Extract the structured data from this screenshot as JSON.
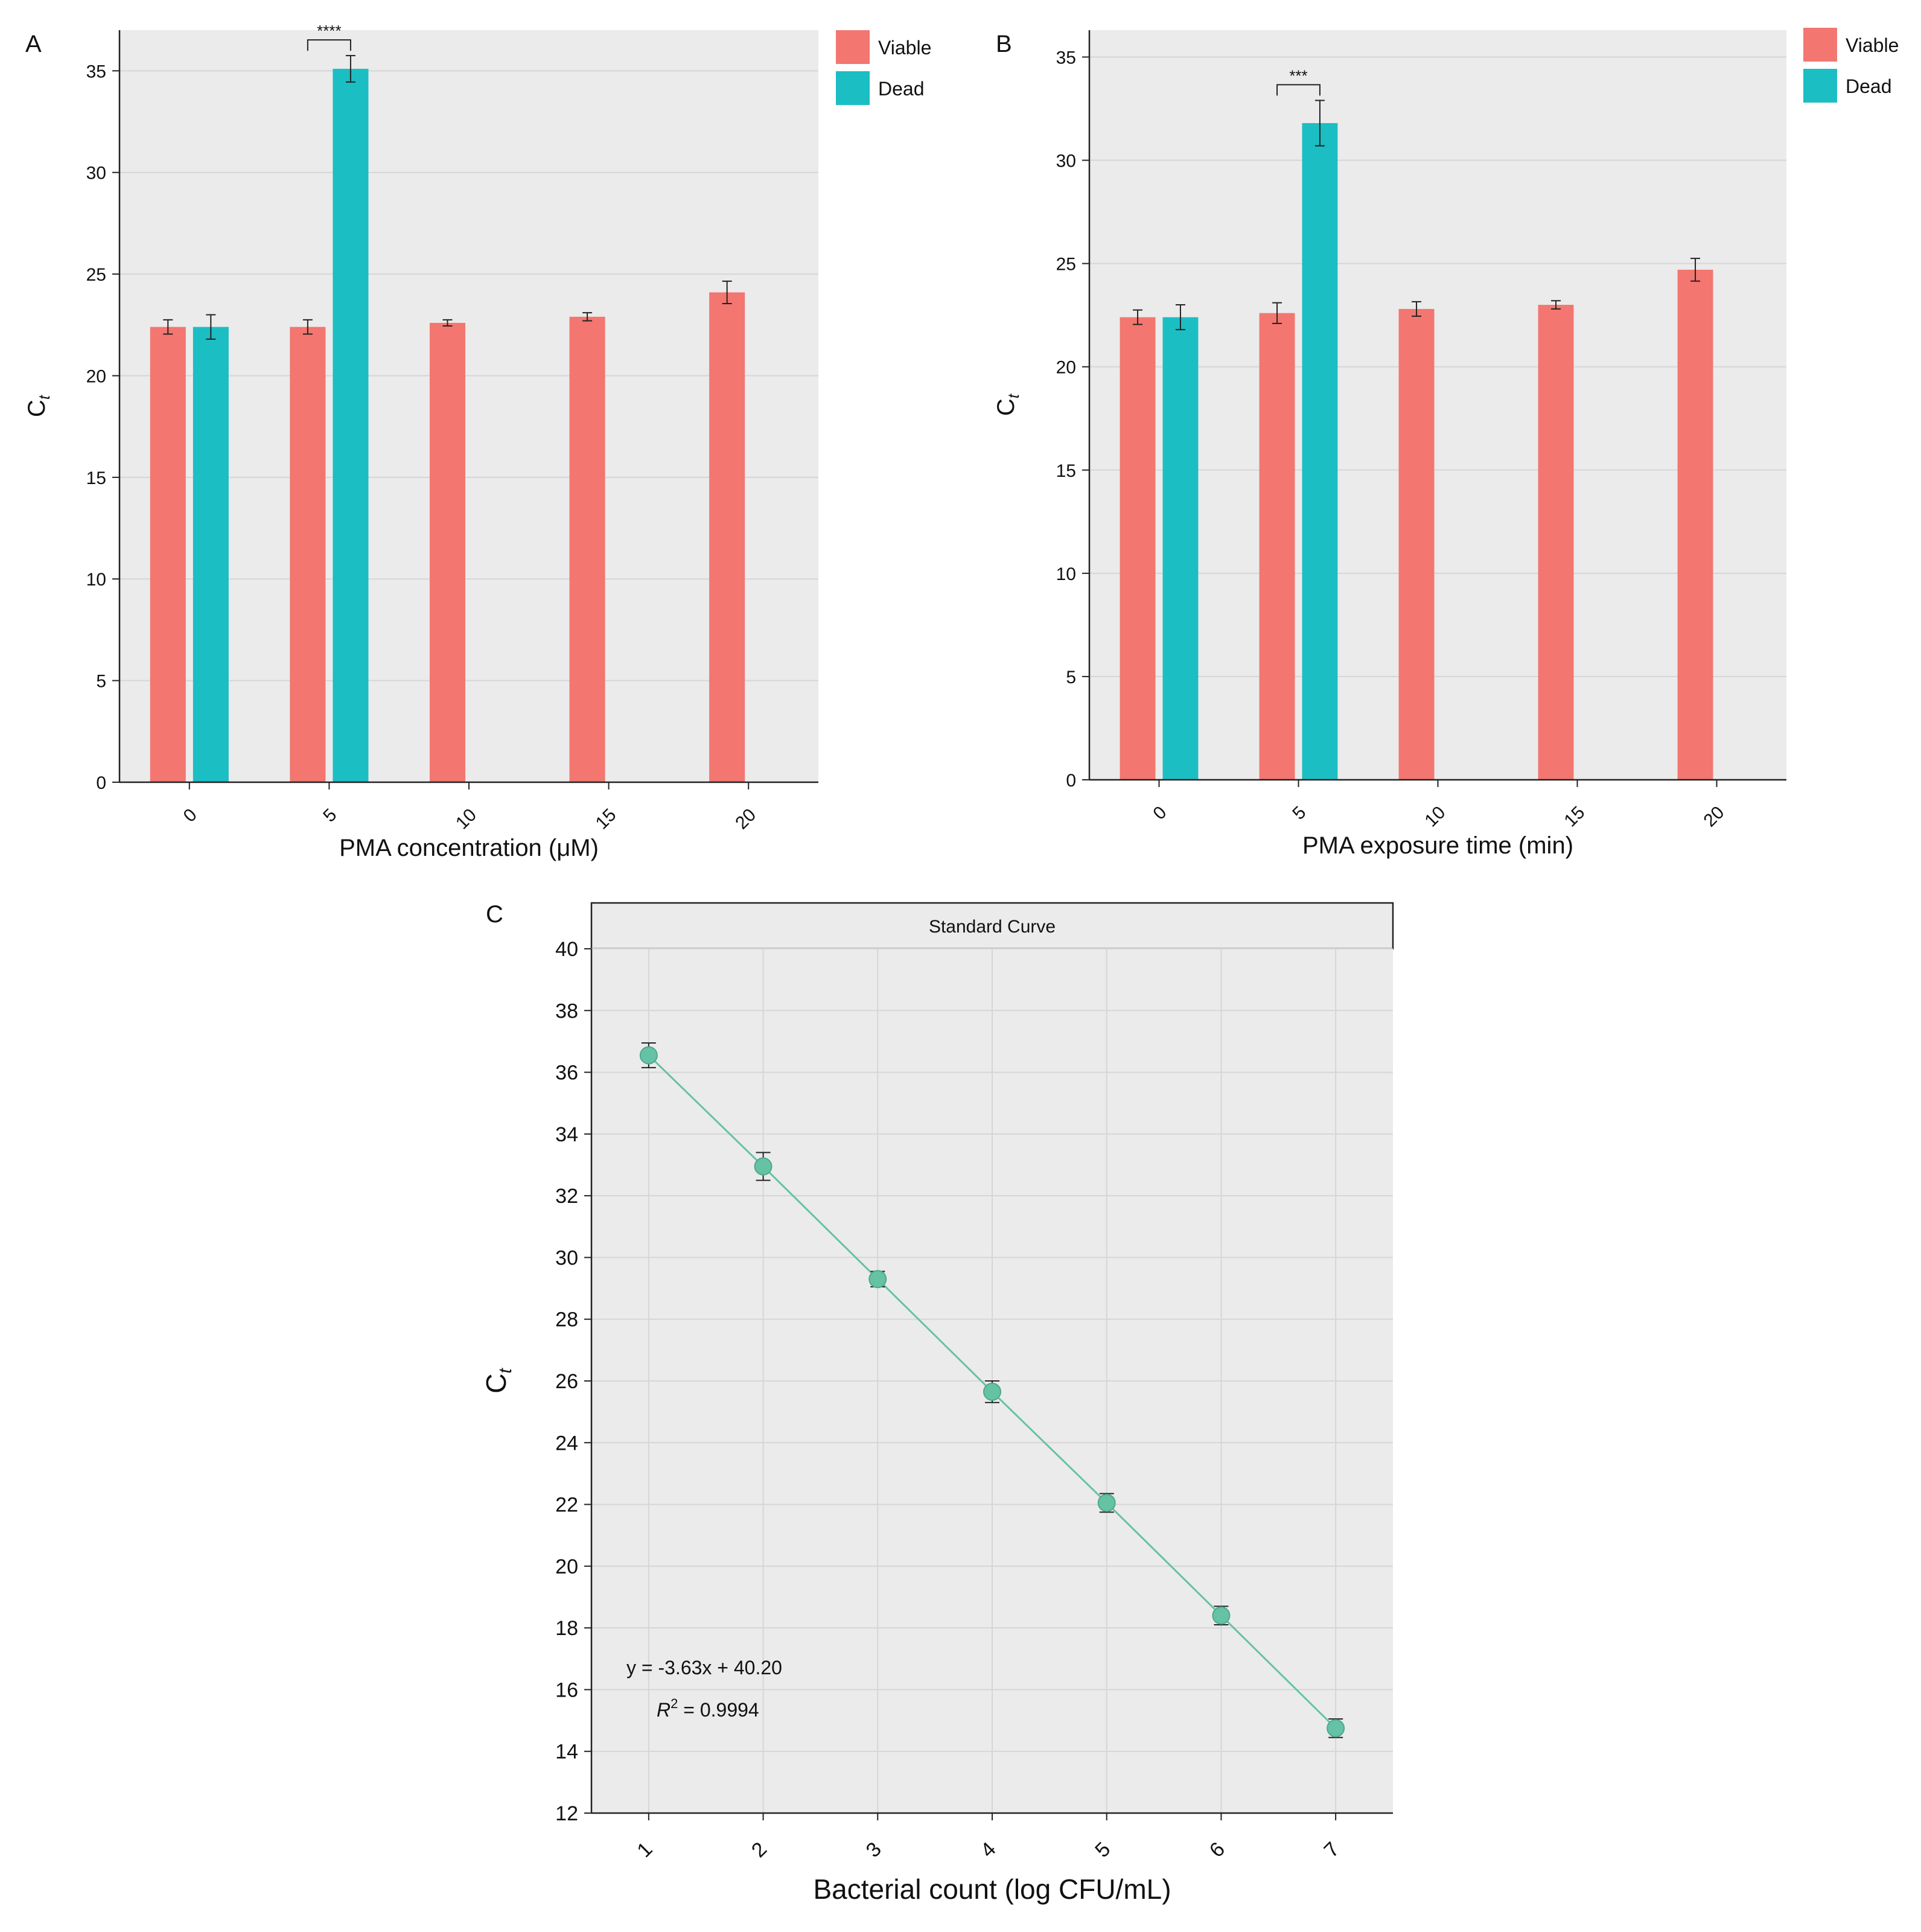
{
  "colors": {
    "viable": "#F37670",
    "dead": "#1BBEC3",
    "curve": "#66C2A5",
    "panel_bg": "#EBEBEB",
    "grid": "#D6D6D6",
    "strip_bg": "#EBEBEB"
  },
  "chart_data": [
    {
      "panel": "A",
      "type": "bar",
      "title": "",
      "xlabel": "PMA concentration (μM)",
      "ylabel": "Ct",
      "ylabel_main": "C",
      "ylabel_sub": "t",
      "ylim": [
        0,
        37
      ],
      "yticks": [
        0,
        5,
        10,
        15,
        20,
        25,
        30,
        35
      ],
      "categories": [
        "0",
        "5",
        "10",
        "15",
        "20"
      ],
      "legend": [
        "Viable",
        "Dead"
      ],
      "series": [
        {
          "name": "Viable",
          "values": [
            22.4,
            22.4,
            22.6,
            22.9,
            24.1
          ],
          "errors": [
            0.35,
            0.35,
            0.15,
            0.2,
            0.55
          ]
        },
        {
          "name": "Dead",
          "values": [
            22.4,
            35.1,
            null,
            null,
            null
          ],
          "errors": [
            0.6,
            0.65,
            null,
            null,
            null
          ]
        }
      ],
      "annotation": {
        "text": "****",
        "category": "5"
      }
    },
    {
      "panel": "B",
      "type": "bar",
      "title": "",
      "xlabel": "PMA exposure time (min)",
      "ylabel": "Ct",
      "ylabel_main": "C",
      "ylabel_sub": "t",
      "ylim": [
        0,
        36.3
      ],
      "yticks": [
        0,
        5,
        10,
        15,
        20,
        25,
        30,
        35
      ],
      "categories": [
        "0",
        "5",
        "10",
        "15",
        "20"
      ],
      "legend": [
        "Viable",
        "Dead"
      ],
      "series": [
        {
          "name": "Viable",
          "values": [
            22.4,
            22.6,
            22.8,
            23.0,
            24.7
          ],
          "errors": [
            0.35,
            0.5,
            0.35,
            0.2,
            0.55
          ]
        },
        {
          "name": "Dead",
          "values": [
            22.4,
            31.8,
            null,
            null,
            null
          ],
          "errors": [
            0.6,
            1.1,
            null,
            null,
            null
          ]
        }
      ],
      "annotation": {
        "text": "***",
        "category": "5"
      }
    },
    {
      "panel": "C",
      "type": "line",
      "title": "Standard Curve",
      "xlabel": "Bacterial count (log CFU/mL)",
      "ylabel": "Ct",
      "ylabel_main": "C",
      "ylabel_sub": "t",
      "xlim": [
        0.5,
        7.5
      ],
      "ylim": [
        12,
        40
      ],
      "xticks": [
        1,
        2,
        3,
        4,
        5,
        6,
        7
      ],
      "yticks": [
        12,
        14,
        16,
        18,
        20,
        22,
        24,
        26,
        28,
        30,
        32,
        34,
        36,
        38,
        40
      ],
      "x": [
        1,
        2,
        3,
        4,
        5,
        6,
        7
      ],
      "y": [
        36.55,
        32.95,
        29.3,
        25.65,
        22.05,
        18.4,
        14.75
      ],
      "errors": [
        0.4,
        0.45,
        0.25,
        0.35,
        0.3,
        0.3,
        0.3
      ],
      "equation": "y = -3.63x + 40.20",
      "r2_prefix": "R",
      "r2_exp": "2",
      "r2_value": " = 0.9994"
    }
  ]
}
